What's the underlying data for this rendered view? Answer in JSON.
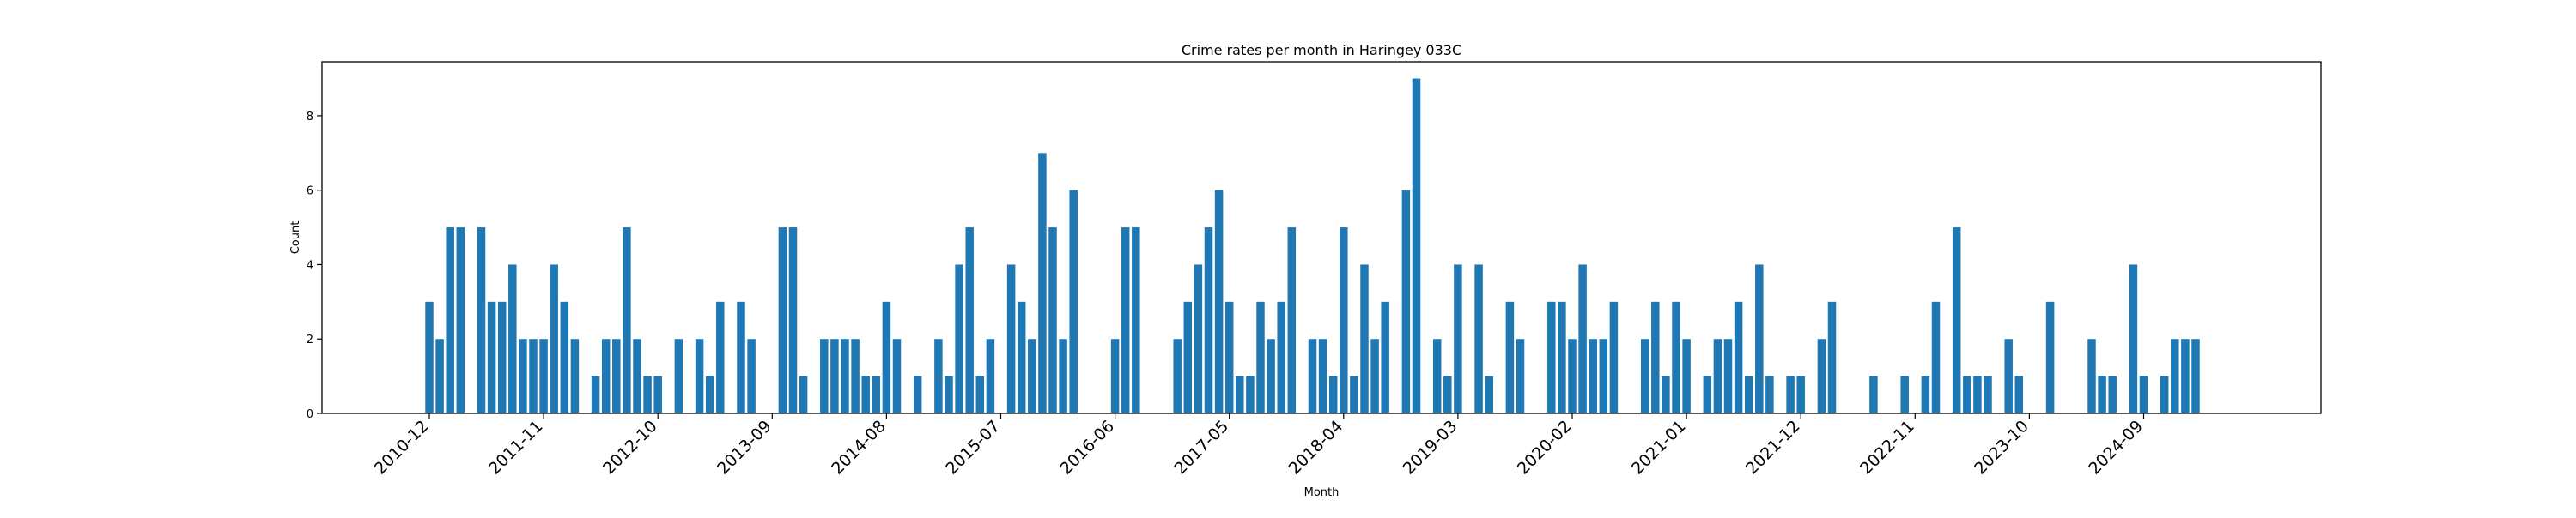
{
  "chart_data": {
    "type": "bar",
    "title": "Crime rates per month in Haringey 033C",
    "xlabel": "Month",
    "ylabel": "Count",
    "ylim": [
      0,
      9.45
    ],
    "yticks": [
      0,
      2,
      4,
      6,
      8
    ],
    "grid": false,
    "legend": "none",
    "bar_color": "#1f77b4",
    "x_tick_labels": [
      "2010-12",
      "2011-11",
      "2012-10",
      "2013-09",
      "2014-08",
      "2015-07",
      "2016-06",
      "2017-05",
      "2018-04",
      "2019-03",
      "2020-02",
      "2021-01",
      "2021-12",
      "2022-11",
      "2023-10",
      "2024-09"
    ],
    "x_start": "2010-12",
    "x_end": "2025-01",
    "values": [
      3,
      2,
      5,
      5,
      0,
      5,
      3,
      3,
      4,
      2,
      2,
      2,
      4,
      3,
      2,
      0,
      1,
      2,
      2,
      5,
      2,
      1,
      1,
      0,
      2,
      0,
      2,
      1,
      3,
      0,
      3,
      2,
      0,
      0,
      5,
      5,
      1,
      0,
      2,
      2,
      2,
      2,
      1,
      1,
      3,
      2,
      0,
      1,
      0,
      2,
      1,
      4,
      5,
      1,
      2,
      0,
      4,
      3,
      2,
      7,
      5,
      2,
      6,
      0,
      0,
      0,
      2,
      5,
      5,
      0,
      0,
      0,
      2,
      3,
      4,
      5,
      6,
      3,
      1,
      1,
      3,
      2,
      3,
      5,
      0,
      2,
      2,
      1,
      5,
      1,
      4,
      2,
      3,
      0,
      6,
      9,
      0,
      2,
      1,
      4,
      0,
      4,
      1,
      0,
      3,
      2,
      0,
      0,
      3,
      3,
      2,
      4,
      2,
      2,
      3,
      0,
      0,
      2,
      3,
      1,
      3,
      2,
      0,
      1,
      2,
      2,
      3,
      1,
      4,
      1,
      0,
      1,
      1,
      0,
      2,
      3,
      0,
      0,
      0,
      1,
      0,
      0,
      1,
      0,
      1,
      3,
      0,
      5,
      1,
      1,
      1,
      0,
      2,
      1,
      0,
      0,
      3,
      0,
      0,
      0,
      2,
      1,
      1,
      0,
      4,
      1,
      0,
      1,
      2,
      2,
      2
    ]
  }
}
